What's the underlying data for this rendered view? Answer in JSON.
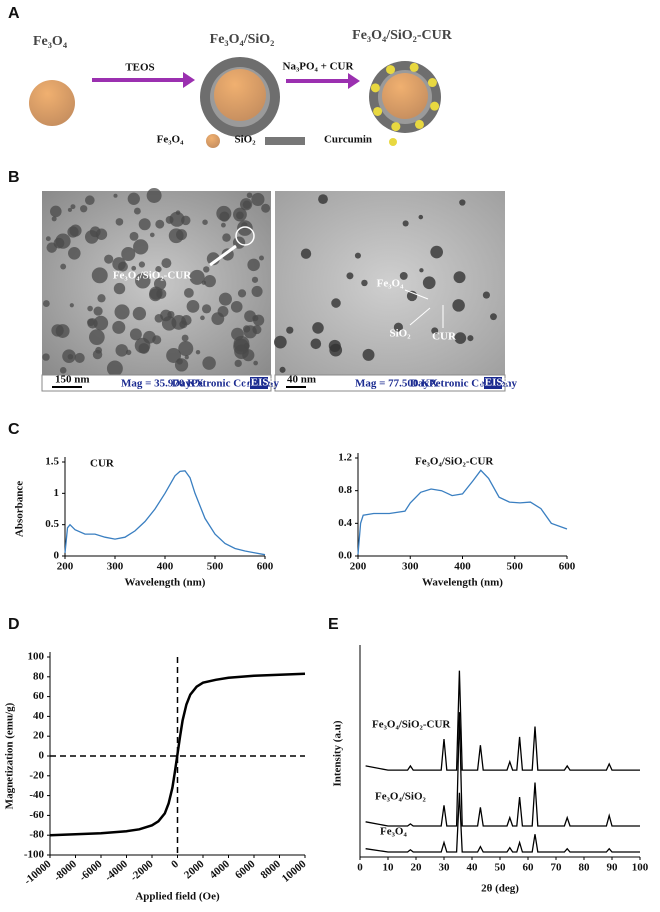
{
  "panel_labels": [
    "A",
    "B",
    "C",
    "D",
    "E"
  ],
  "panel_a": {
    "titles": [
      "Fe₃O₄",
      "Fe₃O₄/SiO₂",
      "Fe₃O₄/SiO₂-CUR"
    ],
    "arrows": [
      "TEOS",
      "Na₃PO₄ + CUR"
    ],
    "legend": [
      "Fe₃O₄",
      "SiO₂",
      "Curcumin"
    ]
  },
  "panel_b": {
    "left": {
      "annotation": "Fe₃O₄/SiO₂-CUR",
      "scale": "150 nm",
      "mag": "Mag = 35.970 KX",
      "company": "DayPetronic Company",
      "logo": "ZEISS"
    },
    "right": {
      "annotations": [
        "Fe₃O₄",
        "SiO₂",
        "CUR"
      ],
      "scale": "40 nm",
      "mag": "Mag = 77.500 KX",
      "company": "DayPetronic Company",
      "logo": "ZEISS"
    }
  },
  "chart_data": [
    {
      "type": "line",
      "title": "CUR",
      "x_label": "Wavelength (nm)",
      "y_label": "Absorbance",
      "color": "#3a7fc1",
      "x": [
        200,
        205,
        210,
        220,
        240,
        260,
        280,
        300,
        320,
        340,
        360,
        380,
        400,
        420,
        430,
        440,
        450,
        460,
        480,
        500,
        520,
        540,
        560,
        580,
        600
      ],
      "values": [
        0.05,
        0.45,
        0.5,
        0.42,
        0.35,
        0.35,
        0.3,
        0.27,
        0.3,
        0.4,
        0.55,
        0.75,
        1.0,
        1.28,
        1.35,
        1.36,
        1.25,
        1.0,
        0.6,
        0.35,
        0.2,
        0.12,
        0.08,
        0.05,
        0.02
      ],
      "xlim": [
        200,
        600
      ],
      "xticks": [
        200,
        300,
        400,
        500,
        600
      ],
      "ylim": [
        0,
        1.5
      ],
      "yticks": [
        0,
        0.5,
        1,
        1.5
      ]
    },
    {
      "type": "line",
      "title": "Fe₃O₄/SiO₂-CUR",
      "x_label": "Wavelength (nm)",
      "color": "#3a7fc1",
      "x": [
        200,
        205,
        210,
        230,
        260,
        290,
        300,
        320,
        340,
        360,
        380,
        400,
        420,
        435,
        450,
        470,
        490,
        510,
        530,
        550,
        570,
        600
      ],
      "values": [
        0.02,
        0.4,
        0.5,
        0.52,
        0.52,
        0.55,
        0.65,
        0.78,
        0.82,
        0.8,
        0.74,
        0.76,
        0.92,
        1.05,
        0.95,
        0.72,
        0.66,
        0.65,
        0.66,
        0.58,
        0.4,
        0.33
      ],
      "xlim": [
        200,
        600
      ],
      "xticks": [
        200,
        300,
        400,
        500,
        600
      ],
      "ylim": [
        0,
        1.2
      ],
      "yticks": [
        {
          "value": 0,
          "label": "0.0"
        },
        0.4,
        0.8,
        1.2
      ]
    },
    {
      "type": "line",
      "x_label": "Applied field (Oe)",
      "y_label": "Magnetization (emu/g)",
      "color": "#000000",
      "x": [
        -10000,
        -8000,
        -6000,
        -4000,
        -3000,
        -2000,
        -1500,
        -1000,
        -700,
        -400,
        -200,
        0,
        200,
        400,
        700,
        1000,
        1500,
        2000,
        3000,
        4000,
        6000,
        8000,
        10000
      ],
      "values": [
        -80,
        -79,
        -78,
        -76,
        -74,
        -70,
        -66,
        -58,
        -48,
        -32,
        -16,
        2,
        20,
        36,
        52,
        62,
        70,
        74,
        77,
        79,
        81,
        82,
        83
      ],
      "xlim": [
        -10000,
        10000
      ],
      "xticks": [
        -10000,
        -8000,
        -6000,
        -4000,
        -2000,
        0,
        2000,
        4000,
        6000,
        8000,
        10000
      ],
      "ylim": [
        -100,
        100
      ],
      "yticks": [
        -100,
        -80,
        -60,
        -40,
        -20,
        0,
        20,
        40,
        60,
        80,
        100
      ],
      "reference_lines": true
    },
    {
      "type": "line",
      "x_label": "2θ (deg)",
      "y_label": "Intensity (a.u)",
      "x": [
        2,
        10,
        17,
        18,
        19,
        29,
        30,
        31,
        34.5,
        35.5,
        36.5,
        42,
        43,
        44,
        52.5,
        53.5,
        54.5,
        56,
        57,
        58,
        61.5,
        62.5,
        63.5,
        73,
        74,
        75,
        88,
        89,
        90,
        100
      ],
      "series": [
        {
          "name": "Fe₃O₄/SiO₂-CUR",
          "color": "#000000",
          "values": [
            44,
            42,
            42,
            44,
            42,
            42,
            57,
            42,
            42,
            90,
            42,
            42,
            54,
            42,
            42,
            46,
            42,
            42,
            58,
            42,
            42,
            63,
            42,
            42,
            44,
            42,
            42,
            45,
            42,
            42
          ]
        },
        {
          "name": "Fe₃O₄/SiO₂",
          "color": "#000000",
          "values": [
            17,
            15,
            15,
            16,
            15,
            15,
            25,
            15,
            15,
            70,
            15,
            15,
            24,
            15,
            15,
            19,
            15,
            15,
            29,
            15,
            15,
            36,
            15,
            15,
            19,
            15,
            15,
            20,
            15,
            15
          ]
        },
        {
          "name": "Fe₃O₄",
          "color": "#000000",
          "values": [
            4,
            2.4,
            2.4,
            3.5,
            2.4,
            2.4,
            7,
            2.4,
            2.4,
            31,
            2.4,
            2.4,
            5,
            2.4,
            2.4,
            4.5,
            2.4,
            2.4,
            7,
            2.4,
            2.4,
            11,
            2.4,
            2.4,
            4,
            2.4,
            2.4,
            4,
            2.4,
            2.4
          ]
        }
      ],
      "xlim": [
        0,
        100
      ],
      "xticks": [
        0,
        10,
        20,
        30,
        40,
        50,
        60,
        70,
        80,
        90,
        100
      ],
      "ylim": [
        0,
        100
      ]
    }
  ]
}
